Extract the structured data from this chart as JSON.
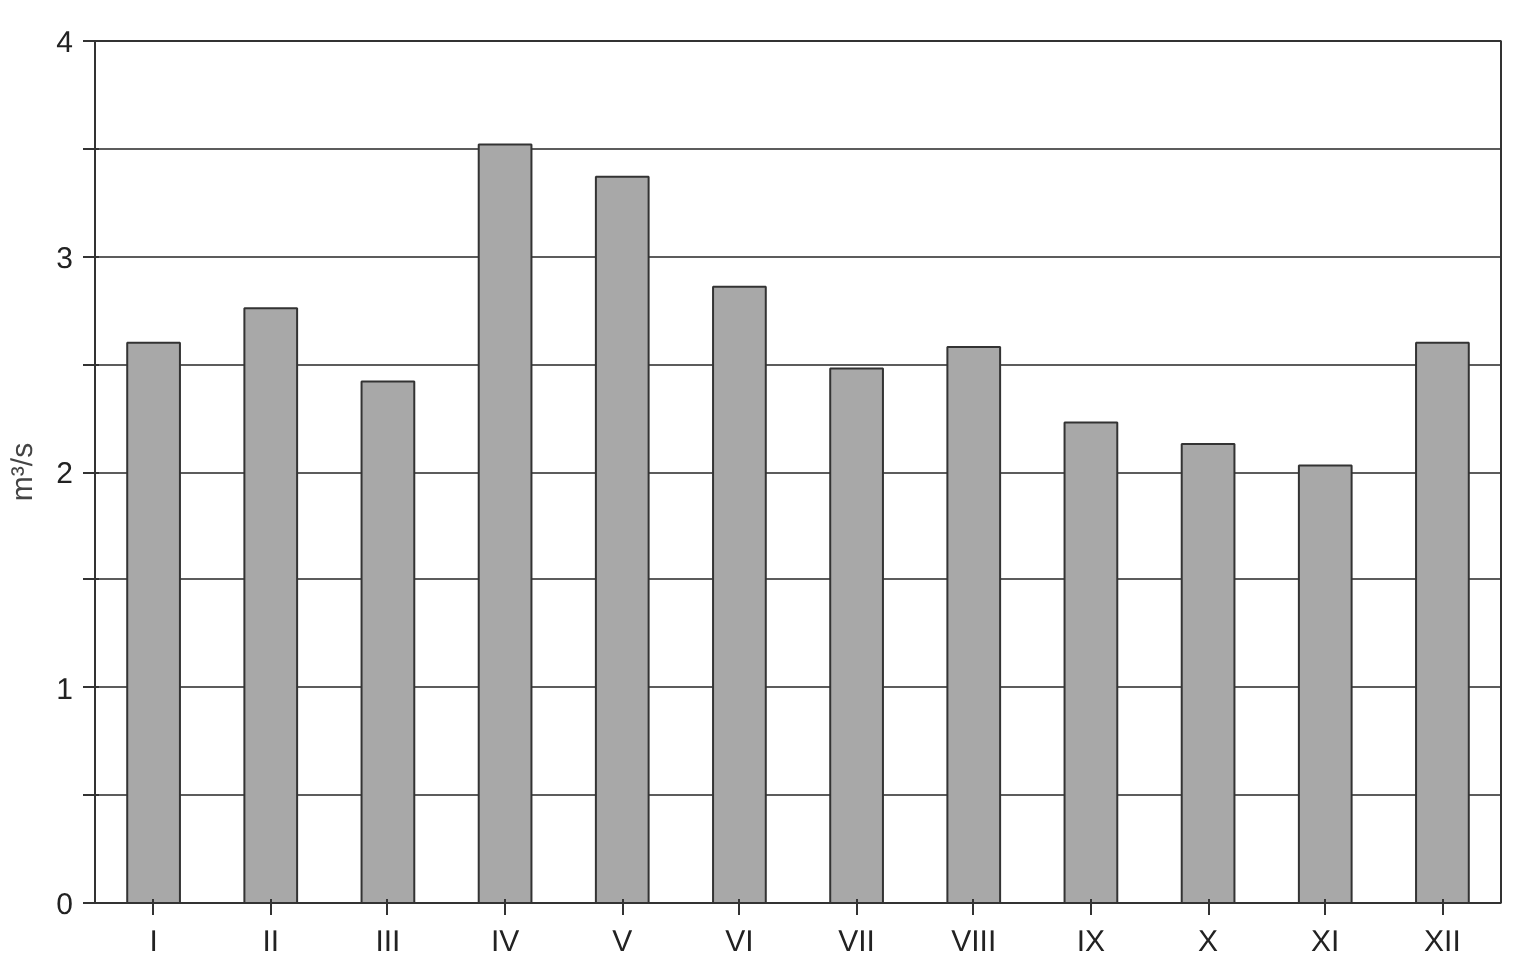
{
  "chart_data": {
    "type": "bar",
    "ylabel": "m³/s",
    "categories": [
      "I",
      "II",
      "III",
      "IV",
      "V",
      "VI",
      "VII",
      "VIII",
      "IX",
      "X",
      "XI",
      "XII"
    ],
    "values": [
      2.6,
      2.76,
      2.42,
      3.52,
      3.37,
      2.86,
      2.48,
      2.58,
      2.23,
      2.13,
      2.03,
      2.6
    ],
    "color": "#a8a8a8",
    "ylim": [
      0,
      4
    ],
    "yticks": [
      0,
      {
        "value": 0.5,
        "label": null
      },
      1,
      {
        "value": 1.5,
        "label": null
      },
      2,
      {
        "value": 2.5,
        "label": null
      },
      3,
      {
        "value": 3.5,
        "label": null
      },
      4
    ],
    "grid": "y"
  }
}
